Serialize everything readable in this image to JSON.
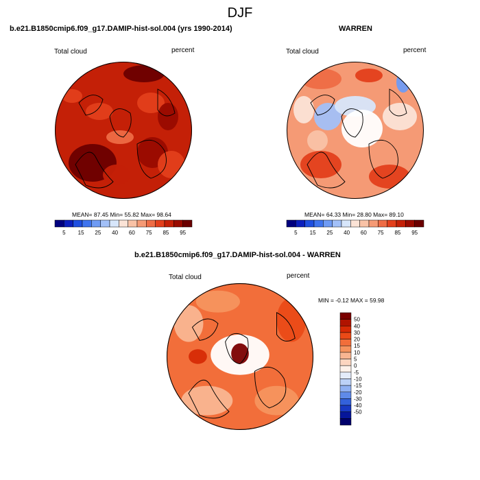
{
  "title": "DJF",
  "panels": [
    {
      "id": "model",
      "title": "b.e21.B1850cmip6.f09_g17.DAMIP-hist-sol.004 (yrs 1990-2014)",
      "left_label": "Total cloud",
      "right_label": "percent",
      "stats": "MEAN=  87.45  Min=  55.82  Max=  98.64",
      "scale": "abs"
    },
    {
      "id": "obs",
      "title": "WARREN",
      "left_label": "Total cloud",
      "right_label": "percent",
      "stats": "MEAN=  64.33  Min=  28.80  Max=  89.10",
      "scale": "abs"
    },
    {
      "id": "diff",
      "title": "b.e21.B1850cmip6.f09_g17.DAMIP-hist-sol.004 - WARREN",
      "left_label": "Total cloud",
      "right_label": "percent",
      "stats": "MIN =  -0.12 MAX =  59.98",
      "scale": "diff"
    }
  ],
  "colorbar_abs": {
    "colors": [
      "#00007f",
      "#0c1fbd",
      "#1f4fe0",
      "#3f74ee",
      "#6f9bf4",
      "#a2c0f8",
      "#d7e6fb",
      "#fbe3d6",
      "#f9c2a6",
      "#f59a75",
      "#ee6c45",
      "#e33f1b",
      "#c42007",
      "#990b00",
      "#6b0000"
    ],
    "labels": [
      "5",
      "15",
      "25",
      "40",
      "60",
      "75",
      "85",
      "95"
    ]
  },
  "colorbar_diff": {
    "colors": [
      "#7b0000",
      "#b01300",
      "#d62a05",
      "#ea4a17",
      "#f26e3a",
      "#f6935e",
      "#f9b591",
      "#fcd5c0",
      "#fdf1ea",
      "#e4ecfb",
      "#bcd1f7",
      "#8fb0f2",
      "#5f8ae9",
      "#3361db",
      "#1839c3",
      "#06169a",
      "#00006b"
    ],
    "labels": [
      "50",
      "40",
      "30",
      "20",
      "15",
      "10",
      "5",
      "0",
      "-5",
      "-10",
      "-15",
      "-20",
      "-30",
      "-40",
      "-50"
    ]
  }
}
